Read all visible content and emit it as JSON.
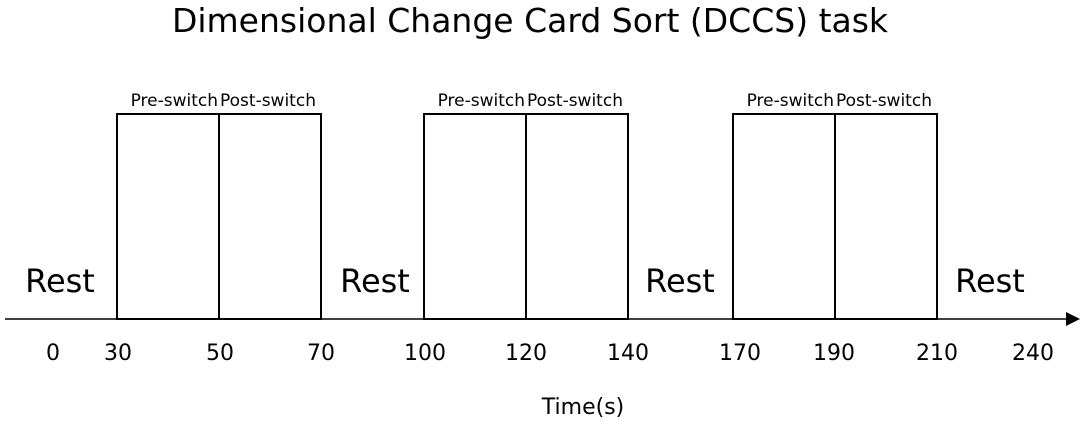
{
  "title": "Dimensional Change Card Sort (DCCS) task",
  "blocks": [
    {
      "pre": "Pre-switch",
      "post": "Post-switch"
    },
    {
      "pre": "Pre-switch",
      "post": "Post-switch"
    },
    {
      "pre": "Pre-switch",
      "post": "Post-switch"
    }
  ],
  "rests": [
    "Rest",
    "Rest",
    "Rest",
    "Rest"
  ],
  "ticks": [
    0,
    30,
    50,
    70,
    100,
    120,
    140,
    170,
    190,
    210,
    240
  ],
  "axis_label": "Time(s)"
}
